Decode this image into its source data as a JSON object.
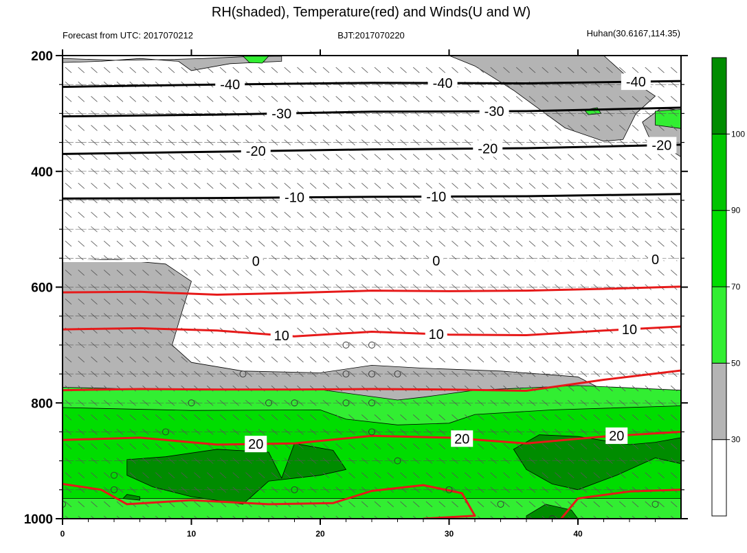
{
  "chart_data": {
    "type": "heatmap",
    "title": "RH(shaded), Temperature(red) and Winds(U and W)",
    "subtitle_left": "Forecast from UTC: 2017070212",
    "subtitle_center": "BJT:2017070220",
    "subtitle_right": "Huhan(30.6167,114.35)",
    "x": {
      "range": [
        0,
        48
      ],
      "ticks": [
        0,
        10,
        20,
        30,
        40
      ],
      "tick_labels": [
        "0",
        "10",
        "20",
        "30",
        "40"
      ]
    },
    "y": {
      "range": [
        200,
        1000
      ],
      "inverted": true,
      "ticks": [
        200,
        400,
        600,
        800,
        1000
      ],
      "tick_labels": [
        "200",
        "400",
        "600",
        "800",
        "1000"
      ]
    },
    "colorbar": {
      "levels": [
        30,
        50,
        70,
        90,
        100
      ],
      "labels": [
        "30",
        "50",
        "70",
        "90",
        "100"
      ],
      "colors": [
        "#ffffff",
        "#b4b4b4",
        "#32ee32",
        "#00dd00",
        "#00c400",
        "#008c00"
      ]
    },
    "rh_regions": [
      {
        "level": 50,
        "color": "#b4b4b4",
        "points": [
          [
            0,
            555
          ],
          [
            4,
            552
          ],
          [
            8,
            560
          ],
          [
            10,
            590
          ],
          [
            9.3,
            640
          ],
          [
            8.5,
            700
          ],
          [
            10,
            730
          ],
          [
            14,
            745
          ],
          [
            20,
            748
          ],
          [
            24,
            735
          ],
          [
            28,
            740
          ],
          [
            34,
            745
          ],
          [
            40,
            755
          ],
          [
            42,
            778
          ],
          [
            48,
            788
          ],
          [
            48,
            1000
          ],
          [
            0,
            1000
          ]
        ]
      },
      {
        "level": 50,
        "color": "#b4b4b4",
        "points": [
          [
            0,
            205
          ],
          [
            4,
            208
          ],
          [
            8,
            207
          ],
          [
            11,
            205
          ],
          [
            14,
            202
          ],
          [
            17,
            201
          ],
          [
            17,
            210
          ],
          [
            13,
            214
          ],
          [
            10,
            226
          ],
          [
            9,
            210
          ],
          [
            6,
            205
          ],
          [
            3,
            210
          ],
          [
            0,
            212
          ]
        ]
      },
      {
        "level": 50,
        "color": "#b4b4b4",
        "points": [
          [
            30,
            200
          ],
          [
            42,
            200
          ],
          [
            44,
            240
          ],
          [
            46,
            270
          ],
          [
            44.5,
            300
          ],
          [
            43.5,
            345
          ],
          [
            42,
            348
          ],
          [
            39,
            325
          ],
          [
            35,
            260
          ],
          [
            32,
            218
          ]
        ]
      },
      {
        "level": 50,
        "color": "#b4b4b4",
        "points": [
          [
            45,
            315
          ],
          [
            46.5,
            290
          ],
          [
            48,
            295
          ],
          [
            48,
            375
          ],
          [
            45.5,
            340
          ]
        ]
      },
      {
        "level": 70,
        "color": "#32ee32",
        "points": [
          [
            0,
            773
          ],
          [
            10,
            778
          ],
          [
            20,
            777
          ],
          [
            26,
            795
          ],
          [
            28,
            790
          ],
          [
            32,
            778
          ],
          [
            40,
            770
          ],
          [
            48,
            778
          ],
          [
            48,
            1000
          ],
          [
            0,
            1000
          ]
        ]
      },
      {
        "level": 70,
        "color": "#32ee32",
        "points": [
          [
            14,
            201
          ],
          [
            16,
            201
          ],
          [
            15.5,
            213
          ],
          [
            14.5,
            212
          ]
        ]
      },
      {
        "level": 70,
        "color": "#32ee32",
        "points": [
          [
            40.5,
            294
          ],
          [
            41.5,
            290
          ],
          [
            41.8,
            300
          ],
          [
            40.8,
            302
          ]
        ]
      },
      {
        "level": 70,
        "color": "#32ee32",
        "points": [
          [
            46,
            296
          ],
          [
            48,
            293
          ],
          [
            48,
            326
          ],
          [
            46,
            320
          ]
        ]
      },
      {
        "level": 90,
        "color": "#00dd00",
        "points": [
          [
            0,
            808
          ],
          [
            10,
            813
          ],
          [
            20,
            812
          ],
          [
            22,
            828
          ],
          [
            26,
            838
          ],
          [
            30,
            835
          ],
          [
            32,
            820
          ],
          [
            38,
            812
          ],
          [
            48,
            805
          ],
          [
            48,
            965
          ],
          [
            0,
            965
          ]
        ]
      },
      {
        "level": 100,
        "color": "#008c00",
        "points": [
          [
            5,
            898
          ],
          [
            8,
            893
          ],
          [
            12,
            880
          ],
          [
            16,
            885
          ],
          [
            17,
            930
          ],
          [
            18,
            870
          ],
          [
            21,
            882
          ],
          [
            22,
            915
          ],
          [
            20,
            925
          ],
          [
            16,
            935
          ],
          [
            14,
            975
          ],
          [
            10,
            962
          ],
          [
            7,
            945
          ],
          [
            5,
            925
          ]
        ]
      },
      {
        "level": 100,
        "color": "#008c00",
        "points": [
          [
            35,
            880
          ],
          [
            37,
            855
          ],
          [
            40,
            858
          ],
          [
            44,
            872
          ],
          [
            46,
            868
          ],
          [
            48,
            860
          ],
          [
            48,
            905
          ],
          [
            46,
            895
          ],
          [
            43,
            925
          ],
          [
            40,
            950
          ],
          [
            38,
            940
          ],
          [
            36,
            915
          ]
        ]
      },
      {
        "level": 100,
        "color": "#008c00",
        "points": [
          [
            36,
            995
          ],
          [
            37.5,
            975
          ],
          [
            39.5,
            985
          ],
          [
            40,
            1000
          ],
          [
            36,
            1000
          ]
        ]
      },
      {
        "level": 100,
        "color": "#008c00",
        "points": [
          [
            4.7,
            965
          ],
          [
            5,
            958
          ],
          [
            6,
            962
          ],
          [
            6,
            968
          ]
        ]
      }
    ],
    "temperature_contours": [
      {
        "value": -40,
        "label": "-40",
        "color": "#000000",
        "points": [
          [
            0,
            254
          ],
          [
            12,
            250
          ],
          [
            24,
            247
          ],
          [
            36,
            248
          ],
          [
            48,
            244
          ]
        ],
        "label_x": [
          13,
          29.5,
          44.5
        ]
      },
      {
        "value": -30,
        "label": "-30",
        "color": "#000000",
        "points": [
          [
            0,
            305
          ],
          [
            12,
            302
          ],
          [
            24,
            297
          ],
          [
            36,
            296
          ],
          [
            48,
            290
          ]
        ],
        "label_x": [
          17,
          33.5
        ]
      },
      {
        "value": -20,
        "label": "-20",
        "color": "#000000",
        "points": [
          [
            0,
            370
          ],
          [
            12,
            366
          ],
          [
            24,
            362
          ],
          [
            36,
            360
          ],
          [
            48,
            354
          ]
        ],
        "label_x": [
          15,
          33,
          46.5
        ]
      },
      {
        "value": -10,
        "label": "-10",
        "color": "#000000",
        "points": [
          [
            0,
            447
          ],
          [
            12,
            446
          ],
          [
            24,
            444
          ],
          [
            36,
            443
          ],
          [
            48,
            439
          ]
        ],
        "label_x": [
          18,
          29
        ]
      },
      {
        "value": 0,
        "label": "0",
        "color": "#ffffff",
        "points": [
          [
            0,
            555
          ],
          [
            12,
            555
          ],
          [
            24,
            555
          ],
          [
            36,
            553
          ],
          [
            48,
            552
          ]
        ],
        "label_x": [
          15,
          29,
          46
        ]
      },
      {
        "value": 5,
        "label": "",
        "color": "#e61919",
        "points": [
          [
            0,
            609
          ],
          [
            6,
            608
          ],
          [
            12,
            613
          ],
          [
            18,
            610
          ],
          [
            24,
            606
          ],
          [
            30,
            607
          ],
          [
            36,
            606
          ],
          [
            42,
            603
          ],
          [
            48,
            599
          ]
        ],
        "label_x": []
      },
      {
        "value": 10,
        "label": "10",
        "color": "#e61919",
        "points": [
          [
            0,
            673
          ],
          [
            6,
            671
          ],
          [
            12,
            675
          ],
          [
            18,
            685
          ],
          [
            24,
            677
          ],
          [
            30,
            682
          ],
          [
            36,
            683
          ],
          [
            42,
            675
          ],
          [
            48,
            668
          ]
        ],
        "label_x": [
          17,
          29,
          44
        ]
      },
      {
        "value": 15,
        "label": "",
        "color": "#e61919",
        "points": [
          [
            0,
            778
          ],
          [
            6,
            776
          ],
          [
            12,
            777
          ],
          [
            18,
            777
          ],
          [
            24,
            776
          ],
          [
            30,
            777
          ],
          [
            36,
            779
          ],
          [
            42,
            760
          ],
          [
            48,
            744
          ]
        ],
        "label_x": []
      },
      {
        "value": 20,
        "label": "20",
        "color": "#e61919",
        "points": [
          [
            0,
            864
          ],
          [
            6,
            860
          ],
          [
            12,
            872
          ],
          [
            18,
            870
          ],
          [
            24,
            857
          ],
          [
            30,
            860
          ],
          [
            36,
            870
          ],
          [
            42,
            858
          ],
          [
            48,
            850
          ]
        ],
        "label_x": [
          15,
          31,
          43
        ]
      },
      {
        "value": 25,
        "label": "",
        "color": "#e61919",
        "points": [
          [
            0,
            940
          ],
          [
            3,
            950
          ],
          [
            5,
            975
          ],
          [
            10,
            968
          ],
          [
            16,
            975
          ],
          [
            21,
            973
          ],
          [
            24,
            952
          ],
          [
            28,
            942
          ],
          [
            31,
            956
          ],
          [
            32,
            995
          ],
          [
            28,
            1000
          ]
        ],
        "label_x": []
      },
      {
        "value": 25,
        "label": "",
        "color": "#e61919",
        "points": [
          [
            38.7,
            1000
          ],
          [
            40,
            965
          ],
          [
            44,
            953
          ],
          [
            48,
            950
          ]
        ],
        "label_x": []
      }
    ],
    "wind_levels": [
      225,
      250,
      275,
      300,
      325,
      350,
      375,
      400,
      425,
      450,
      475,
      500,
      525,
      550,
      575,
      600,
      625,
      650,
      675,
      700,
      725,
      750,
      775,
      800,
      825,
      850,
      875,
      900,
      925,
      950,
      975,
      1000
    ],
    "calm_markers": [
      [
        22,
        700
      ],
      [
        24,
        700
      ],
      [
        14,
        750
      ],
      [
        22,
        750
      ],
      [
        24,
        750
      ],
      [
        26,
        750
      ],
      [
        10,
        800
      ],
      [
        16,
        800
      ],
      [
        18,
        800
      ],
      [
        22,
        800
      ],
      [
        24,
        800
      ],
      [
        24,
        850
      ],
      [
        8,
        850
      ],
      [
        26,
        900
      ],
      [
        4,
        925
      ],
      [
        4,
        950
      ],
      [
        18,
        950
      ],
      [
        30,
        950
      ],
      [
        34,
        975
      ],
      [
        0,
        975
      ],
      [
        38,
        1000
      ],
      [
        46,
        975
      ]
    ]
  }
}
